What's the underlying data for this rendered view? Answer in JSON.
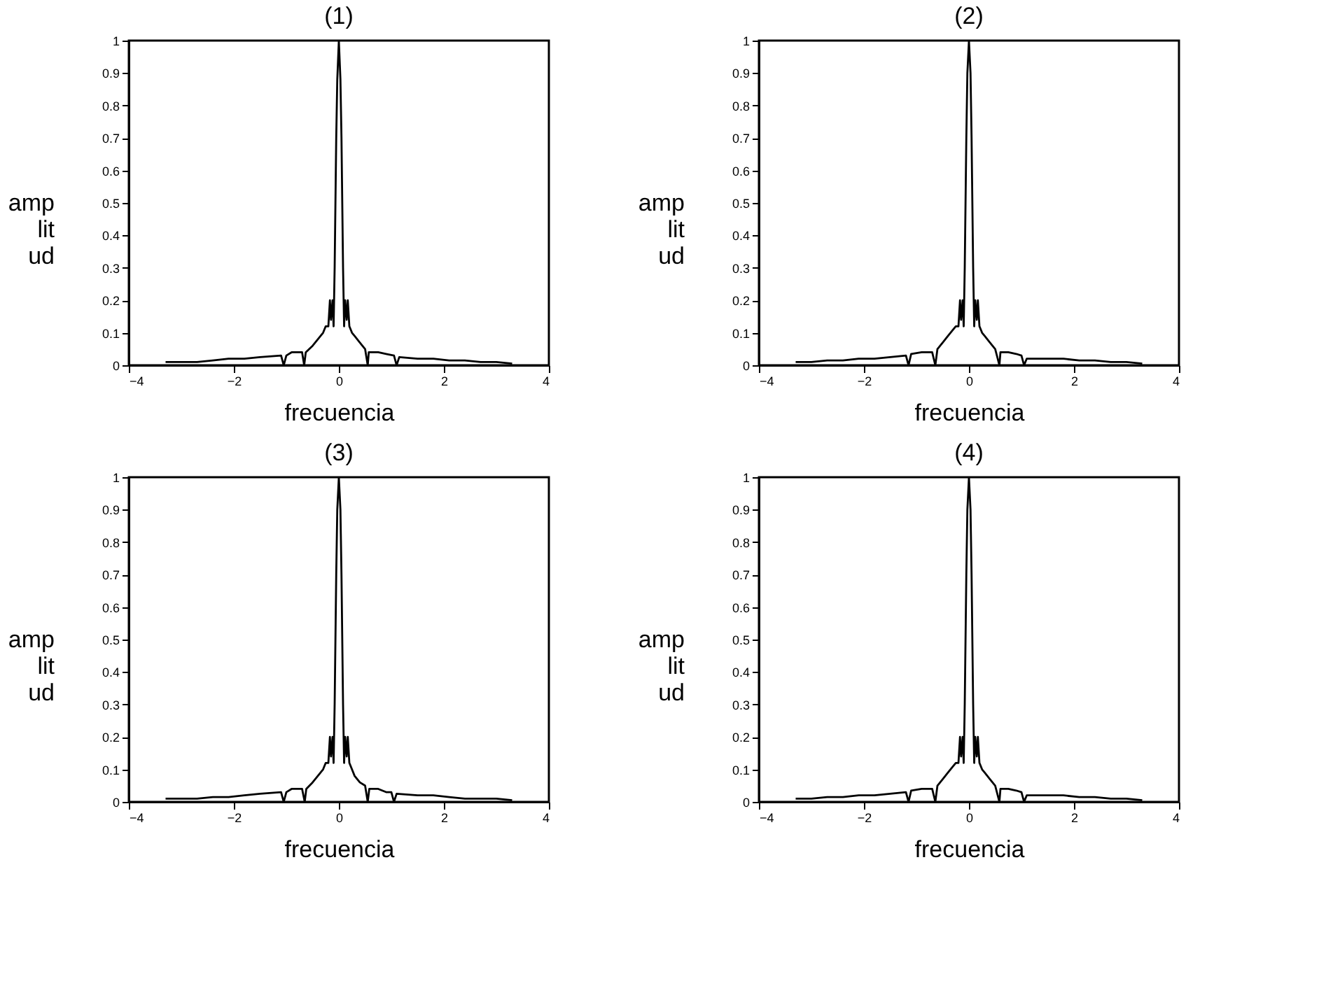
{
  "chart_data": [
    {
      "type": "line",
      "title": "(1)",
      "xlabel": "frecuencia",
      "ylabel": "amplitud",
      "xlim": [
        -4,
        4
      ],
      "ylim": [
        0,
        1
      ],
      "xticks": [
        -4,
        -2,
        0,
        2,
        4
      ],
      "yticks": [
        0,
        0.1,
        0.2,
        0.3,
        0.4,
        0.5,
        0.6,
        0.7,
        0.8,
        0.9,
        1
      ],
      "series": [
        {
          "color": "#000000",
          "x": [
            -3.3,
            -3.0,
            -2.7,
            -2.4,
            -2.1,
            -1.8,
            -1.5,
            -1.1,
            -1.05,
            -1.0,
            -0.9,
            -0.7,
            -0.66,
            -0.63,
            -0.5,
            -0.4,
            -0.3,
            -0.25,
            -0.2,
            -0.17,
            -0.15,
            -0.12,
            -0.1,
            -0.08,
            -0.05,
            -0.03,
            0,
            0.03,
            0.05,
            0.08,
            0.1,
            0.12,
            0.15,
            0.17,
            0.2,
            0.25,
            0.3,
            0.4,
            0.5,
            0.55,
            0.57,
            0.75,
            0.9,
            1.05,
            1.1,
            1.15,
            1.5,
            1.8,
            2.1,
            2.4,
            2.7,
            3.0,
            3.3
          ],
          "values": [
            0.01,
            0.01,
            0.01,
            0.015,
            0.02,
            0.02,
            0.025,
            0.03,
            0,
            0.03,
            0.04,
            0.04,
            0,
            0.04,
            0.06,
            0.08,
            0.1,
            0.12,
            0.12,
            0.2,
            0.14,
            0.2,
            0.12,
            0.3,
            0.7,
            0.88,
            1,
            0.88,
            0.7,
            0.3,
            0.12,
            0.2,
            0.14,
            0.2,
            0.12,
            0.1,
            0.09,
            0.07,
            0.05,
            0,
            0.04,
            0.04,
            0.035,
            0.03,
            0,
            0.025,
            0.02,
            0.02,
            0.015,
            0.015,
            0.01,
            0.01,
            0.005
          ]
        }
      ]
    },
    {
      "type": "line",
      "title": "(2)",
      "xlabel": "frecuencia",
      "ylabel": "amplitud",
      "xlim": [
        -4,
        4
      ],
      "ylim": [
        0,
        1
      ],
      "xticks": [
        -4,
        -2,
        0,
        2,
        4
      ],
      "yticks": [
        0,
        0.1,
        0.2,
        0.3,
        0.4,
        0.5,
        0.6,
        0.7,
        0.8,
        0.9,
        1
      ],
      "series": [
        {
          "color": "#000000",
          "x": [
            -3.3,
            -3.0,
            -2.7,
            -2.4,
            -2.1,
            -1.8,
            -1.5,
            -1.2,
            -1.15,
            -1.1,
            -0.9,
            -0.7,
            -0.64,
            -0.6,
            -0.5,
            -0.4,
            -0.3,
            -0.25,
            -0.2,
            -0.17,
            -0.15,
            -0.12,
            -0.1,
            -0.08,
            -0.05,
            -0.03,
            0,
            0.03,
            0.05,
            0.08,
            0.1,
            0.12,
            0.15,
            0.17,
            0.2,
            0.25,
            0.3,
            0.4,
            0.5,
            0.58,
            0.6,
            0.75,
            0.9,
            1.0,
            1.05,
            1.1,
            1.5,
            1.8,
            2.1,
            2.4,
            2.7,
            3.0,
            3.3
          ],
          "values": [
            0.01,
            0.01,
            0.015,
            0.015,
            0.02,
            0.02,
            0.025,
            0.03,
            0,
            0.035,
            0.04,
            0.04,
            0,
            0.05,
            0.07,
            0.09,
            0.11,
            0.12,
            0.12,
            0.2,
            0.14,
            0.2,
            0.12,
            0.3,
            0.7,
            0.9,
            1,
            0.9,
            0.7,
            0.3,
            0.12,
            0.2,
            0.14,
            0.2,
            0.12,
            0.1,
            0.09,
            0.07,
            0.05,
            0,
            0.04,
            0.04,
            0.035,
            0.03,
            0,
            0.02,
            0.02,
            0.02,
            0.015,
            0.015,
            0.01,
            0.01,
            0.005
          ]
        }
      ]
    },
    {
      "type": "line",
      "title": "(3)",
      "xlabel": "frecuencia",
      "ylabel": "amplitud",
      "xlim": [
        -4,
        4
      ],
      "ylim": [
        0,
        1
      ],
      "xticks": [
        -4,
        -2,
        0,
        2,
        4
      ],
      "yticks": [
        0,
        0.1,
        0.2,
        0.3,
        0.4,
        0.5,
        0.6,
        0.7,
        0.8,
        0.9,
        1
      ],
      "series": [
        {
          "color": "#000000",
          "x": [
            -3.3,
            -3.0,
            -2.7,
            -2.4,
            -2.1,
            -1.8,
            -1.5,
            -1.1,
            -1.05,
            -1.0,
            -0.9,
            -0.7,
            -0.65,
            -0.62,
            -0.5,
            -0.4,
            -0.3,
            -0.25,
            -0.2,
            -0.17,
            -0.15,
            -0.12,
            -0.1,
            -0.08,
            -0.05,
            -0.03,
            0,
            0.03,
            0.05,
            0.08,
            0.1,
            0.12,
            0.15,
            0.17,
            0.2,
            0.25,
            0.3,
            0.4,
            0.5,
            0.55,
            0.58,
            0.75,
            0.9,
            1.0,
            1.05,
            1.1,
            1.5,
            1.8,
            2.1,
            2.4,
            2.7,
            3.0,
            3.3
          ],
          "values": [
            0.01,
            0.01,
            0.01,
            0.015,
            0.015,
            0.02,
            0.025,
            0.03,
            0,
            0.03,
            0.04,
            0.04,
            0,
            0.04,
            0.06,
            0.08,
            0.1,
            0.12,
            0.12,
            0.2,
            0.14,
            0.2,
            0.12,
            0.3,
            0.7,
            0.9,
            1,
            0.9,
            0.7,
            0.3,
            0.12,
            0.2,
            0.14,
            0.2,
            0.12,
            0.1,
            0.08,
            0.06,
            0.05,
            0,
            0.04,
            0.04,
            0.03,
            0.03,
            0,
            0.025,
            0.02,
            0.02,
            0.015,
            0.01,
            0.01,
            0.01,
            0.005
          ]
        }
      ]
    },
    {
      "type": "line",
      "title": "(4)",
      "xlabel": "frecuencia",
      "ylabel": "amplitud",
      "xlim": [
        -4,
        4
      ],
      "ylim": [
        0,
        1
      ],
      "xticks": [
        -4,
        -2,
        0,
        2,
        4
      ],
      "yticks": [
        0,
        0.1,
        0.2,
        0.3,
        0.4,
        0.5,
        0.6,
        0.7,
        0.8,
        0.9,
        1
      ],
      "series": [
        {
          "color": "#000000",
          "x": [
            -3.3,
            -3.0,
            -2.7,
            -2.4,
            -2.1,
            -1.8,
            -1.5,
            -1.2,
            -1.15,
            -1.1,
            -0.9,
            -0.7,
            -0.64,
            -0.6,
            -0.5,
            -0.4,
            -0.3,
            -0.25,
            -0.2,
            -0.17,
            -0.15,
            -0.12,
            -0.1,
            -0.08,
            -0.05,
            -0.03,
            0,
            0.03,
            0.05,
            0.08,
            0.1,
            0.12,
            0.15,
            0.17,
            0.2,
            0.25,
            0.3,
            0.4,
            0.5,
            0.58,
            0.6,
            0.75,
            0.9,
            1.0,
            1.05,
            1.1,
            1.5,
            1.8,
            2.1,
            2.4,
            2.7,
            3.0,
            3.3
          ],
          "values": [
            0.01,
            0.01,
            0.015,
            0.015,
            0.02,
            0.02,
            0.025,
            0.03,
            0,
            0.035,
            0.04,
            0.04,
            0,
            0.05,
            0.07,
            0.09,
            0.11,
            0.12,
            0.12,
            0.2,
            0.14,
            0.2,
            0.12,
            0.3,
            0.7,
            0.9,
            1,
            0.9,
            0.7,
            0.3,
            0.12,
            0.2,
            0.14,
            0.2,
            0.12,
            0.1,
            0.09,
            0.07,
            0.05,
            0,
            0.04,
            0.04,
            0.035,
            0.03,
            0,
            0.02,
            0.02,
            0.02,
            0.015,
            0.015,
            0.01,
            0.01,
            0.005
          ]
        }
      ]
    }
  ]
}
